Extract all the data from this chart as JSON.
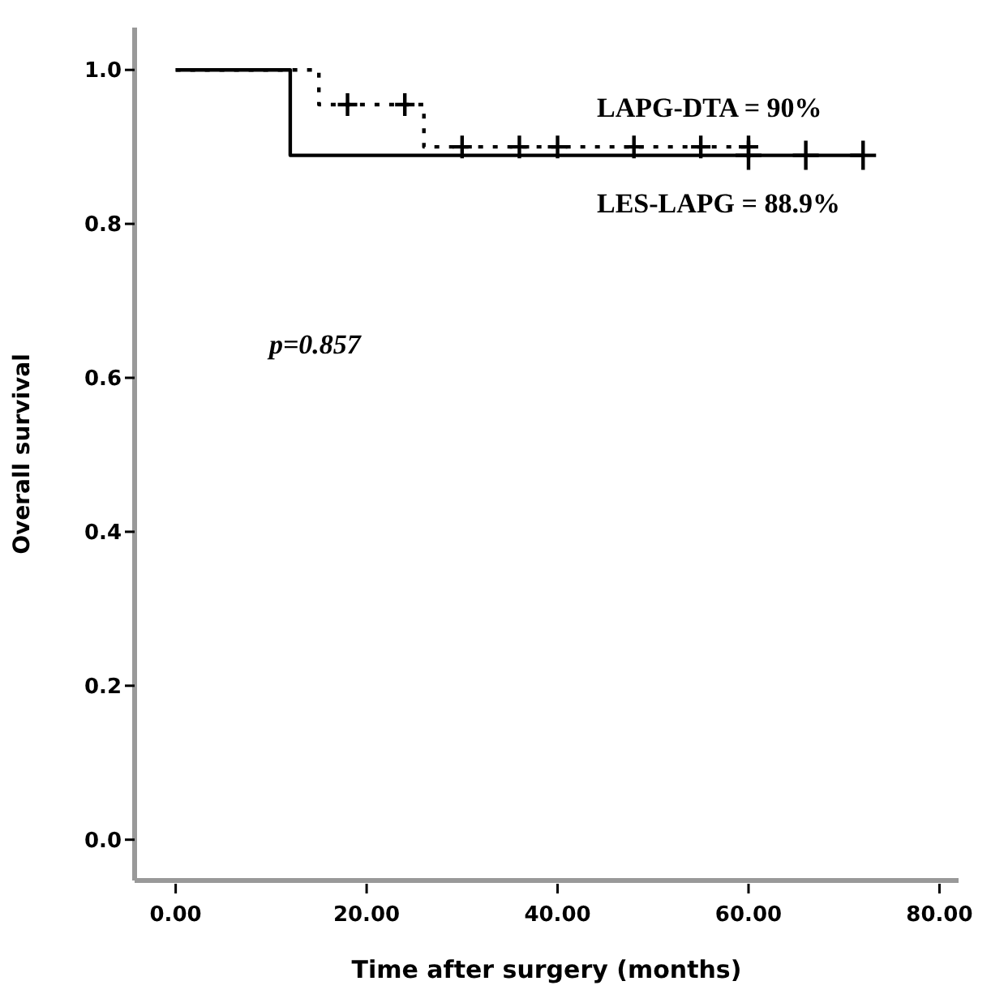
{
  "chart_data": {
    "type": "step",
    "xlabel": "Time after surgery (months)",
    "ylabel": "Overall survival",
    "xlim": [
      -4.3,
      82
    ],
    "ylim": [
      -0.053,
      1.055
    ],
    "xticks": [
      {
        "value": 0,
        "label": "0.00"
      },
      {
        "value": 20,
        "label": "20.00"
      },
      {
        "value": 40,
        "label": "40.00"
      },
      {
        "value": 60,
        "label": "60.00"
      },
      {
        "value": 80,
        "label": "80.00"
      }
    ],
    "yticks": [
      {
        "value": 0,
        "label": "0.0"
      },
      {
        "value": 0.2,
        "label": "0.2"
      },
      {
        "value": 0.4,
        "label": "0.4"
      },
      {
        "value": 0.6,
        "label": "0.6"
      },
      {
        "value": 0.8,
        "label": "0.8"
      },
      {
        "value": 1,
        "label": "1.0"
      }
    ],
    "grid": false,
    "series": [
      {
        "color": "#000000",
        "line_style": "dotted",
        "x": [
          0,
          15,
          26,
          60
        ],
        "values": [
          1,
          0.955,
          0.9,
          0.9
        ]
      },
      {
        "type": "scatter",
        "color": "#000000",
        "marker": "cross",
        "x": [
          18,
          24,
          30,
          36,
          40,
          48,
          55,
          60
        ],
        "values": [
          0.955,
          0.955,
          0.9,
          0.9,
          0.9,
          0.9,
          0.9,
          0.9
        ]
      },
      {
        "color": "#000000",
        "line_style": "solid",
        "x": [
          0,
          12,
          72
        ],
        "values": [
          1,
          0.889,
          0.889
        ]
      },
      {
        "type": "scatter",
        "color": "#000000",
        "marker": "cross",
        "x": [
          60,
          66,
          72
        ],
        "values": [
          0.889,
          0.889,
          0.889
        ]
      }
    ],
    "annotations": [
      "LAPG-DTA = 90%",
      "LES-LAPG = 88.9%",
      "p=0.857"
    ]
  }
}
